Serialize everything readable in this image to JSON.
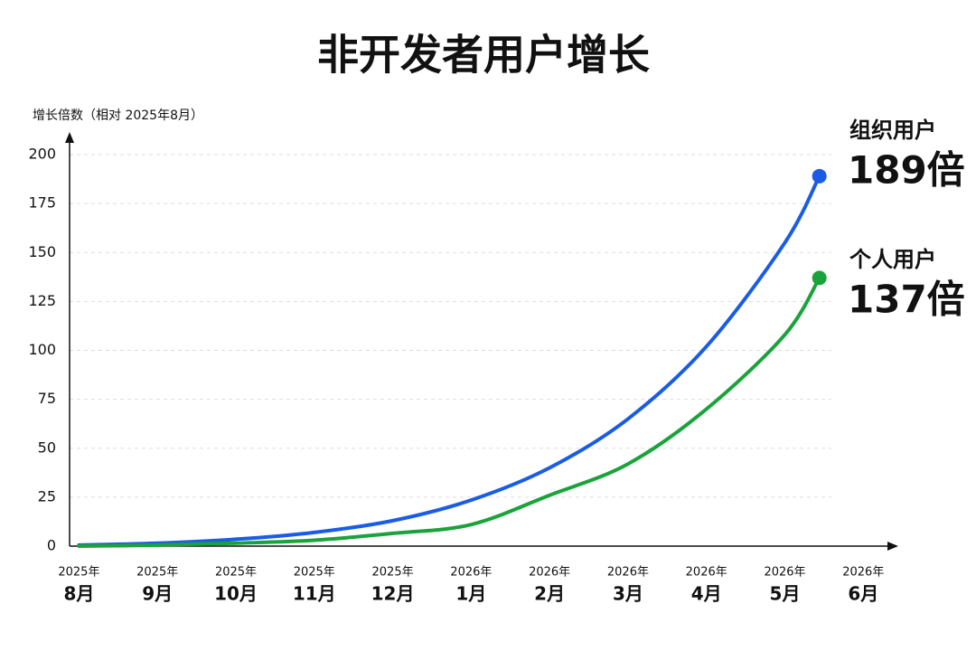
{
  "chart_data": {
    "type": "line",
    "title": "非开发者用户增长",
    "y_label": "增长倍数（相对 2025年8月）",
    "categories": [
      {
        "year": "2025年",
        "month": "8月"
      },
      {
        "year": "2025年",
        "month": "9月"
      },
      {
        "year": "2025年",
        "month": "10月"
      },
      {
        "year": "2025年",
        "month": "11月"
      },
      {
        "year": "2025年",
        "month": "12月"
      },
      {
        "year": "2026年",
        "month": "1月"
      },
      {
        "year": "2026年",
        "month": "2月"
      },
      {
        "year": "2026年",
        "month": "3月"
      },
      {
        "year": "2026年",
        "month": "4月"
      },
      {
        "year": "2026年",
        "month": "5月"
      },
      {
        "year": "2026年",
        "month": "6月"
      }
    ],
    "xlim": [
      -0.12,
      10.4
    ],
    "ylim": [
      0,
      200
    ],
    "yticks": [
      0,
      25,
      50,
      75,
      100,
      125,
      150,
      175,
      200
    ],
    "grid": true,
    "series": [
      {
        "name": "组织用户",
        "color": "#1a5ce6",
        "x": [
          0,
          1,
          2,
          3,
          4,
          5,
          6,
          7,
          8,
          9,
          9.44
        ],
        "values": [
          0.5,
          1.5,
          3.5,
          7,
          13,
          23.5,
          40,
          65,
          102,
          155,
          189
        ],
        "value_labels": [
          null,
          null,
          null,
          null,
          null,
          null,
          null,
          null,
          null,
          null,
          "189倍"
        ]
      },
      {
        "name": "个人用户",
        "color": "#1aa33a",
        "x": [
          0,
          1,
          2,
          3,
          4,
          5,
          6,
          7,
          8,
          9,
          9.44
        ],
        "values": [
          0,
          0.5,
          1.5,
          3,
          6.5,
          11,
          26,
          42,
          70,
          108,
          137
        ],
        "value_labels": [
          null,
          null,
          null,
          null,
          null,
          null,
          null,
          null,
          null,
          null,
          "137倍"
        ]
      }
    ]
  }
}
